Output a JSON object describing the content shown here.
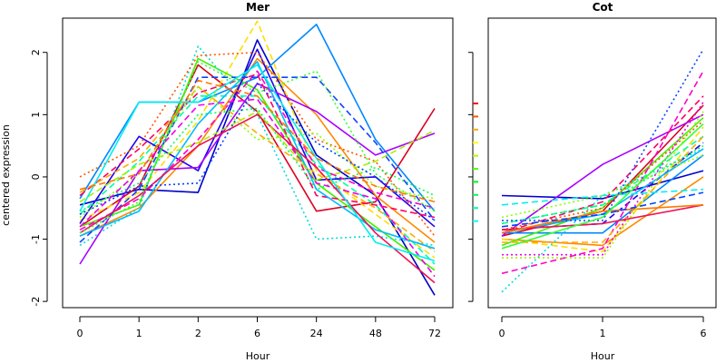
{
  "ylabel": "centered expression",
  "ylim": [
    -2.1,
    2.55
  ],
  "y_ticks": [
    -2,
    -1,
    0,
    1,
    2
  ],
  "series_colors": [
    "#ff0000",
    "#ff2a00",
    "#ff5500",
    "#ff8000",
    "#ffaa00",
    "#ffd400",
    "#d4ff00",
    "#aaff00",
    "#55ff00",
    "#00ff2a",
    "#00ff80",
    "#00ffd4",
    "#00d4ff",
    "#0080ff",
    "#002aff",
    "#2a00ff",
    "#8000ff",
    "#d400ff",
    "#ff00d4",
    "#ff0080"
  ],
  "legend_colors": [
    "#ff0000",
    "#ff5500",
    "#ffaa00",
    "#ffff00",
    "#aaff00",
    "#55ff00",
    "#00ff00",
    "#00ff55",
    "#00ffaa",
    "#00ffff"
  ],
  "chart_data": [
    {
      "type": "line",
      "title": "Mer",
      "xlabel": "Hour",
      "x": [
        "0",
        "1",
        "2",
        "6",
        "24",
        "48",
        "72"
      ],
      "series": [
        {
          "values": [
            -0.45,
            -0.2,
            -0.25,
            2.2,
            0.35,
            -0.3,
            -1.9
          ],
          "color": "#0000cc",
          "style": "solid"
        },
        {
          "values": [
            -0.8,
            -0.15,
            1.8,
            1.05,
            -0.55,
            -0.4,
            1.1
          ],
          "color": "#dd0022",
          "style": "solid"
        },
        {
          "values": [
            -0.35,
            1.2,
            1.2,
            1.6,
            2.45,
            0.6,
            -0.55
          ],
          "color": "#0088ff",
          "style": "solid"
        },
        {
          "values": [
            -0.95,
            -0.5,
            0.5,
            1.9,
            1.0,
            -0.3,
            -1.05
          ],
          "color": "#ff8800",
          "style": "solid"
        },
        {
          "values": [
            -0.7,
            -0.25,
            0.9,
            2.5,
            0.1,
            -0.6,
            -1.3
          ],
          "color": "#ffdd00",
          "style": "dashed"
        },
        {
          "values": [
            -0.8,
            -0.45,
            1.9,
            1.4,
            -0.1,
            -0.8,
            -1.5
          ],
          "color": "#44ee00",
          "style": "solid"
        },
        {
          "values": [
            -1.1,
            -0.5,
            2.1,
            1.0,
            -1.0,
            -0.95,
            -1.1
          ],
          "color": "#00dddd",
          "style": "dotted"
        },
        {
          "values": [
            -0.6,
            0.25,
            1.3,
            1.3,
            0.2,
            -0.45,
            -1.4
          ],
          "color": "#00ffaa",
          "style": "dashed"
        },
        {
          "values": [
            -0.75,
            0.65,
            0.1,
            2.05,
            -0.05,
            0.0,
            -0.8
          ],
          "color": "#2200ee",
          "style": "solid"
        },
        {
          "values": [
            -1.4,
            0.1,
            0.15,
            1.5,
            1.05,
            0.35,
            0.7
          ],
          "color": "#aa00ff",
          "style": "solid"
        },
        {
          "values": [
            -0.85,
            -0.35,
            0.6,
            1.7,
            0.15,
            -0.25,
            -0.5
          ],
          "color": "#ff00cc",
          "style": "dashed"
        },
        {
          "values": [
            -0.3,
            0.45,
            1.35,
            1.65,
            -0.3,
            -0.45,
            -0.65
          ],
          "color": "#ff0066",
          "style": "dashed"
        },
        {
          "values": [
            0.0,
            0.5,
            1.95,
            2.0,
            0.6,
            0.25,
            -0.95
          ],
          "color": "#ff5500",
          "style": "dotted"
        },
        {
          "values": [
            -0.25,
            0.3,
            1.45,
            0.7,
            0.05,
            -0.5,
            -1.2
          ],
          "color": "#ffaa00",
          "style": "dashed"
        },
        {
          "values": [
            -0.55,
            -0.1,
            1.0,
            1.1,
            -0.2,
            0.15,
            -0.3
          ],
          "color": "#00ff55",
          "style": "dotted"
        },
        {
          "values": [
            -0.95,
            -0.55,
            0.85,
            1.85,
            -0.2,
            -0.85,
            -1.15
          ],
          "color": "#00bbff",
          "style": "solid"
        },
        {
          "values": [
            -1.05,
            -0.2,
            1.6,
            1.6,
            1.6,
            0.55,
            -0.7
          ],
          "color": "#1144ff",
          "style": "dashed"
        },
        {
          "values": [
            -0.65,
            0.05,
            1.45,
            0.6,
            0.7,
            -0.15,
            -0.35
          ],
          "color": "#88ff00",
          "style": "dotted"
        },
        {
          "values": [
            -0.8,
            0.1,
            1.15,
            1.25,
            -0.1,
            -0.35,
            -1.6
          ],
          "color": "#ee00ee",
          "style": "dashed"
        },
        {
          "values": [
            -0.9,
            -0.3,
            0.5,
            1.0,
            0.15,
            -0.9,
            -1.7
          ],
          "color": "#ee1155",
          "style": "solid"
        },
        {
          "values": [
            -0.4,
            0.2,
            0.55,
            1.05,
            -0.05,
            0.25,
            0.75
          ],
          "color": "#aaee00",
          "style": "dashed"
        },
        {
          "values": [
            -0.55,
            1.2,
            1.2,
            1.8,
            0.3,
            -1.05,
            -1.35
          ],
          "color": "#00eeee",
          "style": "solid"
        },
        {
          "values": [
            -0.2,
            0.05,
            1.55,
            1.3,
            0.3,
            -0.15,
            -0.4
          ],
          "color": "#ff7700",
          "style": "dashed"
        },
        {
          "values": [
            -0.6,
            -0.15,
            -0.1,
            1.5,
            0.55,
            0.0,
            -0.7
          ],
          "color": "#0044ff",
          "style": "dotted"
        },
        {
          "values": [
            -0.9,
            -0.4,
            1.85,
            1.35,
            1.7,
            0.05,
            -0.55
          ],
          "color": "#33ff33",
          "style": "dotted"
        }
      ]
    },
    {
      "type": "line",
      "title": "Cot",
      "xlabel": "Hour",
      "x": [
        "0",
        "1",
        "6"
      ],
      "series": [
        {
          "values": [
            -0.3,
            -0.35,
            0.1
          ],
          "color": "#0000cc",
          "style": "solid"
        },
        {
          "values": [
            -0.95,
            -0.55,
            1.15
          ],
          "color": "#dd0022",
          "style": "solid"
        },
        {
          "values": [
            -0.9,
            -0.9,
            0.35
          ],
          "color": "#0088ff",
          "style": "solid"
        },
        {
          "values": [
            -1.0,
            -1.1,
            0.0
          ],
          "color": "#ff8800",
          "style": "solid"
        },
        {
          "values": [
            -1.0,
            -1.2,
            0.8
          ],
          "color": "#ffdd00",
          "style": "dashed"
        },
        {
          "values": [
            -1.1,
            -0.5,
            0.95
          ],
          "color": "#44ee00",
          "style": "solid"
        },
        {
          "values": [
            -1.85,
            -0.3,
            0.45
          ],
          "color": "#00dddd",
          "style": "dotted"
        },
        {
          "values": [
            -0.75,
            -0.45,
            0.65
          ],
          "color": "#00ffaa",
          "style": "dashed"
        },
        {
          "values": [
            -0.85,
            -0.75,
            0.55
          ],
          "color": "#2200ee",
          "style": "dashed"
        },
        {
          "values": [
            -0.95,
            0.2,
            1.0
          ],
          "color": "#aa00ff",
          "style": "solid"
        },
        {
          "values": [
            -1.55,
            -1.15,
            1.7
          ],
          "color": "#ff00cc",
          "style": "dashed"
        },
        {
          "values": [
            -0.9,
            -0.4,
            1.3
          ],
          "color": "#ff0066",
          "style": "dashed"
        },
        {
          "values": [
            -0.85,
            -0.5,
            0.9
          ],
          "color": "#ff5500",
          "style": "dotted"
        },
        {
          "values": [
            -1.05,
            -1.05,
            0.65
          ],
          "color": "#ffaa00",
          "style": "dashed"
        },
        {
          "values": [
            -0.75,
            -0.45,
            0.5
          ],
          "color": "#00ff55",
          "style": "dotted"
        },
        {
          "values": [
            -0.9,
            -0.6,
            0.45
          ],
          "color": "#00bbff",
          "style": "solid"
        },
        {
          "values": [
            -0.7,
            -0.7,
            2.05
          ],
          "color": "#1144ff",
          "style": "dotted"
        },
        {
          "values": [
            -0.65,
            -0.3,
            0.35
          ],
          "color": "#88ff00",
          "style": "dotted"
        },
        {
          "values": [
            -1.25,
            -1.25,
            1.2
          ],
          "color": "#ee00ee",
          "style": "dotted"
        },
        {
          "values": [
            -0.85,
            -0.75,
            -0.45
          ],
          "color": "#ee1155",
          "style": "solid"
        },
        {
          "values": [
            -0.9,
            -0.55,
            -0.45
          ],
          "color": "#ff7700",
          "style": "solid"
        },
        {
          "values": [
            -0.8,
            -0.6,
            -0.25
          ],
          "color": "#0044ff",
          "style": "dashed"
        },
        {
          "values": [
            -0.45,
            -0.3,
            -0.2
          ],
          "color": "#00eeee",
          "style": "dashed"
        },
        {
          "values": [
            -1.15,
            -0.65,
            0.85
          ],
          "color": "#33ff33",
          "style": "solid"
        },
        {
          "values": [
            -1.3,
            -1.3,
            1.05
          ],
          "color": "#aaee00",
          "style": "dotted"
        }
      ]
    }
  ]
}
